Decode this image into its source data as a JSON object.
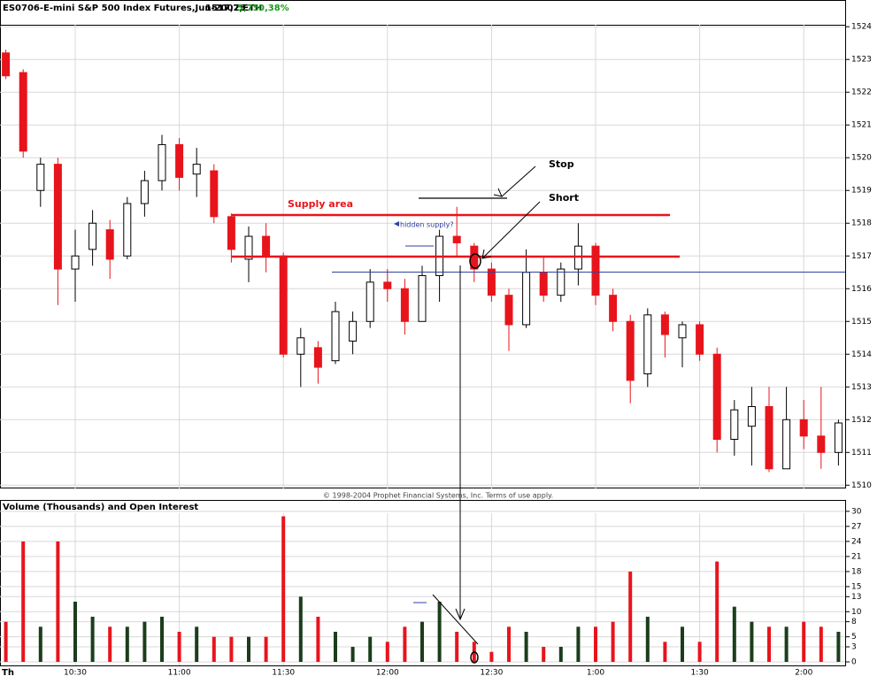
{
  "chart_data": [
    {
      "type": "candlestick",
      "title": "ES0706-E-mini S&P 500 Index Futures,Jun-2007,ETH",
      "last": "1517,25",
      "change": "5,75",
      "change_pct": "0,38%",
      "copyright": "© 1998-2004 Prophet Financial Systems, Inc.   Terms of use apply.",
      "annotations": [
        "Supply area",
        "hidden supply?",
        "Stop",
        "Short"
      ],
      "up_color": "#ffffff",
      "down_color": "#e8141c",
      "open": [
        1523.2,
        1522.6,
        1519.0,
        1519.8,
        1516.6,
        1517.2,
        1517.8,
        1517.0,
        1518.6,
        1519.3,
        1520.4,
        1519.5,
        1519.6,
        1518.2,
        1516.9,
        1517.6,
        1517.0,
        1514.0,
        1514.2,
        1513.8,
        1514.4,
        1515.0,
        1516.2,
        1516.0,
        1515.0,
        1516.4,
        1517.6,
        1517.3,
        1516.6,
        1515.8,
        1514.9,
        1516.5,
        1515.8,
        1516.6,
        1517.3,
        1515.8,
        1515.0,
        1513.4,
        1515.2,
        1514.5,
        1514.9,
        1514.0,
        1511.4,
        1511.8,
        1512.4,
        1510.5,
        1512.0,
        1511.5,
        1511.0
      ],
      "high": [
        1523.3,
        1522.7,
        1520.0,
        1520.0,
        1517.8,
        1518.4,
        1518.1,
        1518.8,
        1519.6,
        1520.7,
        1520.6,
        1520.3,
        1519.8,
        1518.3,
        1517.9,
        1518.0,
        1517.1,
        1514.8,
        1514.4,
        1515.6,
        1515.3,
        1516.6,
        1516.6,
        1516.3,
        1516.7,
        1517.8,
        1518.5,
        1517.4,
        1516.8,
        1516.0,
        1517.2,
        1517.0,
        1516.8,
        1518.0,
        1517.4,
        1516.0,
        1515.2,
        1515.4,
        1515.3,
        1515.0,
        1515.0,
        1514.2,
        1512.6,
        1513.0,
        1513.0,
        1513.0,
        1512.6,
        1513.0,
        1512.0
      ],
      "low": [
        1522.4,
        1520.0,
        1518.5,
        1515.5,
        1515.6,
        1516.7,
        1516.3,
        1516.9,
        1518.2,
        1519.0,
        1519.0,
        1518.8,
        1518.0,
        1516.8,
        1516.2,
        1516.5,
        1513.9,
        1513.0,
        1513.1,
        1513.7,
        1514.0,
        1514.8,
        1515.6,
        1514.6,
        1515.0,
        1515.6,
        1517.0,
        1516.2,
        1515.6,
        1514.1,
        1514.8,
        1515.6,
        1515.6,
        1516.1,
        1515.5,
        1514.7,
        1512.5,
        1513.0,
        1513.9,
        1513.6,
        1513.8,
        1511.0,
        1510.9,
        1510.6,
        1510.4,
        1510.5,
        1511.1,
        1510.5,
        1510.6
      ],
      "close": [
        1522.5,
        1520.2,
        1519.8,
        1516.6,
        1517.0,
        1518.0,
        1516.9,
        1518.6,
        1519.3,
        1520.4,
        1519.4,
        1519.8,
        1518.2,
        1517.2,
        1517.6,
        1517.0,
        1514.0,
        1514.5,
        1513.6,
        1515.3,
        1515.0,
        1516.2,
        1516.0,
        1515.0,
        1516.4,
        1517.6,
        1517.4,
        1516.6,
        1515.8,
        1514.9,
        1516.5,
        1515.8,
        1516.6,
        1517.3,
        1515.8,
        1515.0,
        1513.2,
        1515.2,
        1514.6,
        1514.9,
        1514.0,
        1511.4,
        1512.3,
        1512.4,
        1510.5,
        1512.0,
        1511.5,
        1511.0,
        1511.9
      ],
      "ylim": [
        1509.9,
        1524.6
      ],
      "yticks": [
        1510,
        1511,
        1512,
        1513,
        1514,
        1515,
        1516,
        1517,
        1518,
        1519,
        1520,
        1521,
        1522,
        1523,
        1524
      ],
      "grid": true
    },
    {
      "type": "bar",
      "title": "Volume (Thousands) and Open Interest",
      "day_label": "Th",
      "categories": [
        null,
        null,
        null,
        null,
        "10:30",
        null,
        null,
        null,
        null,
        null,
        "11:00",
        null,
        null,
        null,
        null,
        null,
        "11:30",
        null,
        null,
        null,
        null,
        null,
        "12:00",
        null,
        null,
        null,
        null,
        null,
        "12:30",
        null,
        null,
        null,
        null,
        null,
        "1:00",
        null,
        null,
        null,
        null,
        null,
        "1:30",
        null,
        null,
        null,
        null,
        null,
        "2:00",
        null,
        null
      ],
      "values": [
        8,
        24,
        7,
        24,
        12,
        9,
        7,
        7,
        8,
        9,
        6,
        7,
        5,
        5,
        5,
        5,
        29,
        13,
        9,
        6,
        3,
        5,
        4,
        7,
        8,
        12,
        6,
        4,
        2,
        7,
        6,
        3,
        3,
        7,
        7,
        8,
        18,
        9,
        4,
        7,
        4,
        20,
        11,
        8,
        7,
        7,
        8,
        7,
        6
      ],
      "up_color": "#1b3d1b",
      "down_color": "#e8141c",
      "ylim": [
        -0.7,
        30.5
      ],
      "yticks": [
        0,
        3,
        5,
        8,
        10,
        13,
        15,
        18,
        21,
        24,
        27,
        30
      ],
      "grid": true
    }
  ]
}
